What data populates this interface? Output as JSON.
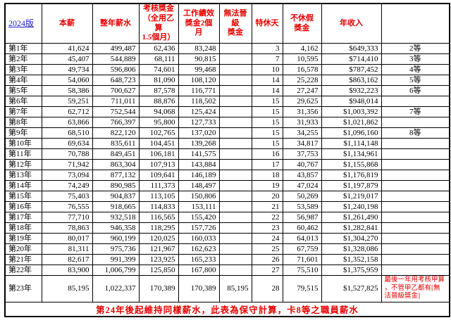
{
  "colors": {
    "accent_red": "#e60000",
    "link_blue": "#2222cc",
    "border_black": "#000000"
  },
  "table": {
    "version_label": "2024版",
    "headers": [
      "本薪",
      "整年薪水",
      "考核獎金\n（全用乙算\n1.5個月）",
      "工作績效\n獎金2個月",
      "無法晉級\n獎金",
      "特休天",
      "不休假\n獎金",
      "年收入",
      ""
    ],
    "rows": [
      {
        "year": "第1年",
        "base": "41,624",
        "annual": "499,487",
        "assessment": "62,436",
        "performance": "83,248",
        "no_promo": "",
        "leave_days": "3",
        "unused_leave": "4,162",
        "income": "$649,333",
        "grade": "2等"
      },
      {
        "year": "第2年",
        "base": "45,407",
        "annual": "544,889",
        "assessment": "68,111",
        "performance": "90,815",
        "no_promo": "",
        "leave_days": "7",
        "unused_leave": "10,595",
        "income": "$714,410",
        "grade": "3等"
      },
      {
        "year": "第3年",
        "base": "49,734",
        "annual": "596,806",
        "assessment": "74,601",
        "performance": "99,468",
        "no_promo": "",
        "leave_days": "10",
        "unused_leave": "16,578",
        "income": "$787,452",
        "grade": "4等"
      },
      {
        "year": "第4年",
        "base": "54,060",
        "annual": "648,723",
        "assessment": "81,090",
        "performance": "108,120",
        "no_promo": "",
        "leave_days": "14",
        "unused_leave": "25,228",
        "income": "$863,162",
        "grade": "5等"
      },
      {
        "year": "第5年",
        "base": "58,386",
        "annual": "700,627",
        "assessment": "87,578",
        "performance": "116,771",
        "no_promo": "",
        "leave_days": "14",
        "unused_leave": "27,247",
        "income": "$932,223",
        "grade": "6等"
      },
      {
        "year": "第6年",
        "base": "59,251",
        "annual": "711,011",
        "assessment": "88,876",
        "performance": "118,502",
        "no_promo": "",
        "leave_days": "15",
        "unused_leave": "29,625",
        "income": "$948,014",
        "grade": ""
      },
      {
        "year": "第7年",
        "base": "62,712",
        "annual": "752,544",
        "assessment": "94,068",
        "performance": "125,424",
        "no_promo": "",
        "leave_days": "15",
        "unused_leave": "31,356",
        "income": "$1,003,392",
        "grade": "7等"
      },
      {
        "year": "第8年",
        "base": "63,866",
        "annual": "766,397",
        "assessment": "95,800",
        "performance": "127,733",
        "no_promo": "",
        "leave_days": "15",
        "unused_leave": "31,933",
        "income": "$1,021,862",
        "grade": ""
      },
      {
        "year": "第9年",
        "base": "68,510",
        "annual": "822,120",
        "assessment": "102,765",
        "performance": "137,020",
        "no_promo": "",
        "leave_days": "15",
        "unused_leave": "34,255",
        "income": "$1,096,160",
        "grade": "8等"
      },
      {
        "year": "第10年",
        "base": "69,634",
        "annual": "835,611",
        "assessment": "104,451",
        "performance": "139,268",
        "no_promo": "",
        "leave_days": "15",
        "unused_leave": "34,817",
        "income": "$1,114,148",
        "grade": ""
      },
      {
        "year": "第11年",
        "base": "70,788",
        "annual": "849,451",
        "assessment": "106,181",
        "performance": "141,575",
        "no_promo": "",
        "leave_days": "16",
        "unused_leave": "37,753",
        "income": "$1,134,961",
        "grade": ""
      },
      {
        "year": "第12年",
        "base": "71,942",
        "annual": "863,304",
        "assessment": "107,913",
        "performance": "143,884",
        "no_promo": "",
        "leave_days": "17",
        "unused_leave": "40,767",
        "income": "$1,155,868",
        "grade": ""
      },
      {
        "year": "第13年",
        "base": "73,094",
        "annual": "877,132",
        "assessment": "109,641",
        "performance": "146,189",
        "no_promo": "",
        "leave_days": "18",
        "unused_leave": "43,857",
        "income": "$1,176,819",
        "grade": ""
      },
      {
        "year": "第14年",
        "base": "74,249",
        "annual": "890,985",
        "assessment": "111,373",
        "performance": "148,497",
        "no_promo": "",
        "leave_days": "19",
        "unused_leave": "47,024",
        "income": "$1,197,879",
        "grade": ""
      },
      {
        "year": "第15年",
        "base": "75,403",
        "annual": "904,837",
        "assessment": "113,105",
        "performance": "150,806",
        "no_promo": "",
        "leave_days": "20",
        "unused_leave": "50,269",
        "income": "$1,219,017",
        "grade": ""
      },
      {
        "year": "第16年",
        "base": "76,555",
        "annual": "918,665",
        "assessment": "114,833",
        "performance": "153,111",
        "no_promo": "",
        "leave_days": "21",
        "unused_leave": "53,589",
        "income": "$1,240,198",
        "grade": ""
      },
      {
        "year": "第17年",
        "base": "77,710",
        "annual": "932,518",
        "assessment": "116,565",
        "performance": "155,420",
        "no_promo": "",
        "leave_days": "22",
        "unused_leave": "56,987",
        "income": "$1,261,490",
        "grade": ""
      },
      {
        "year": "第18年",
        "base": "78,863",
        "annual": "946,358",
        "assessment": "118,295",
        "performance": "157,726",
        "no_promo": "",
        "leave_days": "23",
        "unused_leave": "60,462",
        "income": "$1,282,841",
        "grade": ""
      },
      {
        "year": "第19年",
        "base": "80,017",
        "annual": "960,199",
        "assessment": "120,025",
        "performance": "160,033",
        "no_promo": "",
        "leave_days": "24",
        "unused_leave": "64,013",
        "income": "$1,304,270",
        "grade": ""
      },
      {
        "year": "第20年",
        "base": "81,311",
        "annual": "975,736",
        "assessment": "121,967",
        "performance": "162,623",
        "no_promo": "",
        "leave_days": "25",
        "unused_leave": "67,759",
        "income": "$1,328,086",
        "grade": ""
      },
      {
        "year": "第21年",
        "base": "82,617",
        "annual": "991,399",
        "assessment": "123,925",
        "performance": "165,233",
        "no_promo": "",
        "leave_days": "26",
        "unused_leave": "71,601",
        "income": "$1,352,158",
        "grade": ""
      },
      {
        "year": "第22年",
        "base": "83,900",
        "annual": "1,006,799",
        "assessment": "125,850",
        "performance": "167,800",
        "no_promo": "",
        "leave_days": "27",
        "unused_leave": "75,510",
        "income": "$1,375,959",
        "grade": ""
      },
      {
        "year": "第23年",
        "base": "85,195",
        "annual": "1,022,337",
        "assessment": "170,389",
        "performance": "170,389",
        "no_promo": "85,195",
        "leave_days": "28",
        "unused_leave": "79,515",
        "income": "$1,527,825",
        "grade": "",
        "note": "最後一年用考核甲算\n，不管甲乙都有[無\n法晉級獎金]"
      }
    ],
    "footer_note": "第24年後起維持同樣薪水，此表為保守計算，卡8等之職員薪水"
  }
}
